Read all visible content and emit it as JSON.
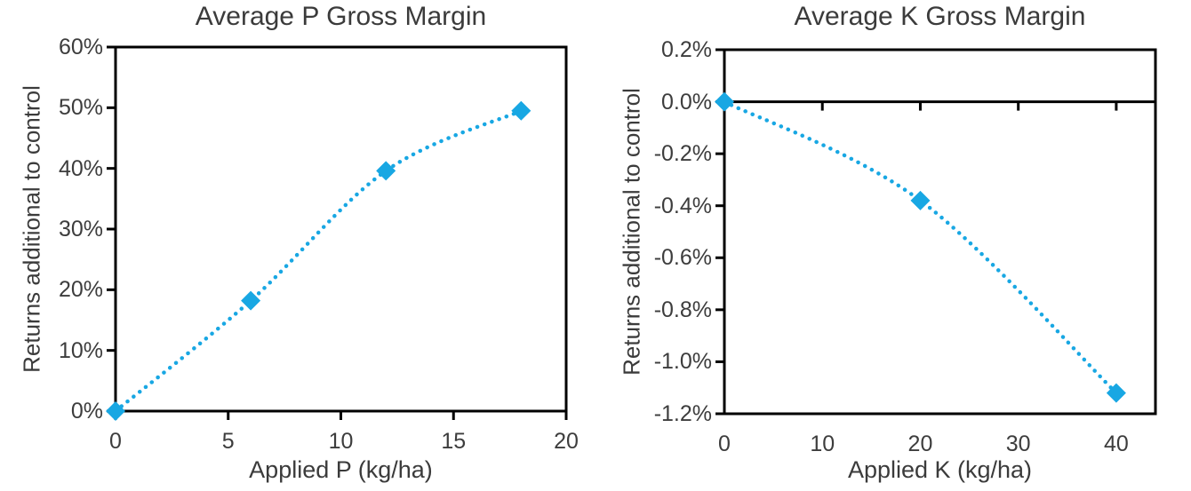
{
  "colors": {
    "accent": "#18A7E3",
    "axis": "#000000",
    "text": "#3d3d3d"
  },
  "chart_data": [
    {
      "type": "scatter",
      "title": "Average P Gross Margin",
      "xlabel": "Applied P (kg/ha)",
      "ylabel": "Returns additional to control",
      "x": [
        0,
        6,
        12,
        18
      ],
      "y": [
        0,
        18.2,
        39.6,
        49.5
      ],
      "y_unit": "percent",
      "xlim": [
        0,
        20
      ],
      "ylim": [
        0,
        60
      ],
      "x_ticks": [
        0,
        5,
        10,
        15,
        20
      ],
      "x_tick_labels": [
        "0",
        "5",
        "10",
        "15",
        "20"
      ],
      "y_ticks": [
        0,
        10,
        20,
        30,
        40,
        50,
        60
      ],
      "y_tick_labels": [
        "0%",
        "10%",
        "20%",
        "30%",
        "40%",
        "50%",
        "60%"
      ],
      "marker": "diamond",
      "series_color": "#18A7E3",
      "trendline": "dotted",
      "x_axis_at": "bottom",
      "grid": false,
      "legend": false
    },
    {
      "type": "scatter",
      "title": "Average K Gross Margin",
      "xlabel": "Applied K (kg/ha)",
      "ylabel": "Returns additional to control",
      "x": [
        0,
        20,
        40
      ],
      "y": [
        0,
        -0.38,
        -1.12
      ],
      "y_unit": "percent",
      "xlim": [
        0,
        44
      ],
      "ylim": [
        -1.2,
        0.2
      ],
      "x_ticks": [
        0,
        10,
        20,
        30,
        40
      ],
      "x_tick_labels": [
        "0",
        "10",
        "20",
        "30",
        "40"
      ],
      "y_ticks": [
        0.2,
        0.0,
        -0.2,
        -0.4,
        -0.6,
        -0.8,
        -1.0,
        -1.2
      ],
      "y_tick_labels": [
        "0.2%",
        "0.0%",
        "-0.2%",
        "-0.4%",
        "-0.6%",
        "-0.8%",
        "-1.0%",
        "-1.2%"
      ],
      "marker": "diamond",
      "series_color": "#18A7E3",
      "trendline": "dotted",
      "x_axis_at": "zero",
      "grid": false,
      "legend": false
    }
  ]
}
